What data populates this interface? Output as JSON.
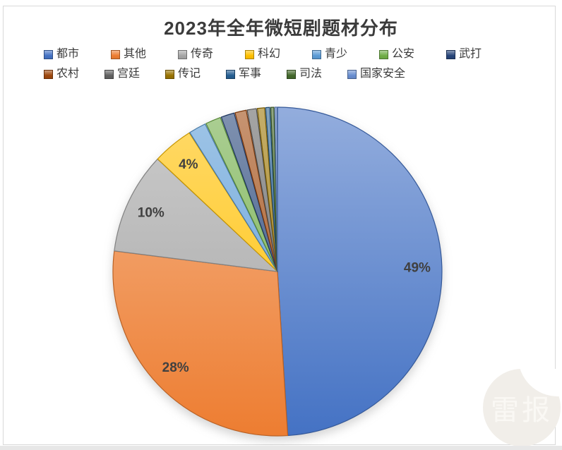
{
  "title": "2023年全年微短剧题材分布",
  "chart_data": {
    "type": "pie",
    "title": "2023年全年微短剧题材分布",
    "direction": "clockwise",
    "start_angle_deg": 0,
    "legend_position": "top",
    "labeled_slices": [
      "都市",
      "其他",
      "传奇",
      "科幻"
    ],
    "slices": [
      {
        "label": "都市",
        "value": 49,
        "color": "#4472C4",
        "data_label": "49%"
      },
      {
        "label": "其他",
        "value": 28,
        "color": "#ED7D31",
        "data_label": "28%"
      },
      {
        "label": "传奇",
        "value": 10,
        "color": "#A5A5A5",
        "data_label": "10%"
      },
      {
        "label": "科幻",
        "value": 4,
        "color": "#FFC000",
        "data_label": "4%"
      },
      {
        "label": "青少",
        "value": 1.8,
        "color": "#5B9BD5",
        "data_label": ""
      },
      {
        "label": "公安",
        "value": 1.6,
        "color": "#70AD47",
        "data_label": ""
      },
      {
        "label": "武打",
        "value": 1.4,
        "color": "#264478",
        "data_label": ""
      },
      {
        "label": "农村",
        "value": 1.2,
        "color": "#9E480E",
        "data_label": ""
      },
      {
        "label": "宫廷",
        "value": 1.0,
        "color": "#636363",
        "data_label": ""
      },
      {
        "label": "传记",
        "value": 0.8,
        "color": "#997300",
        "data_label": ""
      },
      {
        "label": "军事",
        "value": 0.5,
        "color": "#255E91",
        "data_label": ""
      },
      {
        "label": "司法",
        "value": 0.4,
        "color": "#43682B",
        "data_label": ""
      },
      {
        "label": "国家安全",
        "value": 0.3,
        "color": "#698ED0",
        "data_label": ""
      }
    ]
  },
  "watermark": {
    "text": "雷报"
  }
}
